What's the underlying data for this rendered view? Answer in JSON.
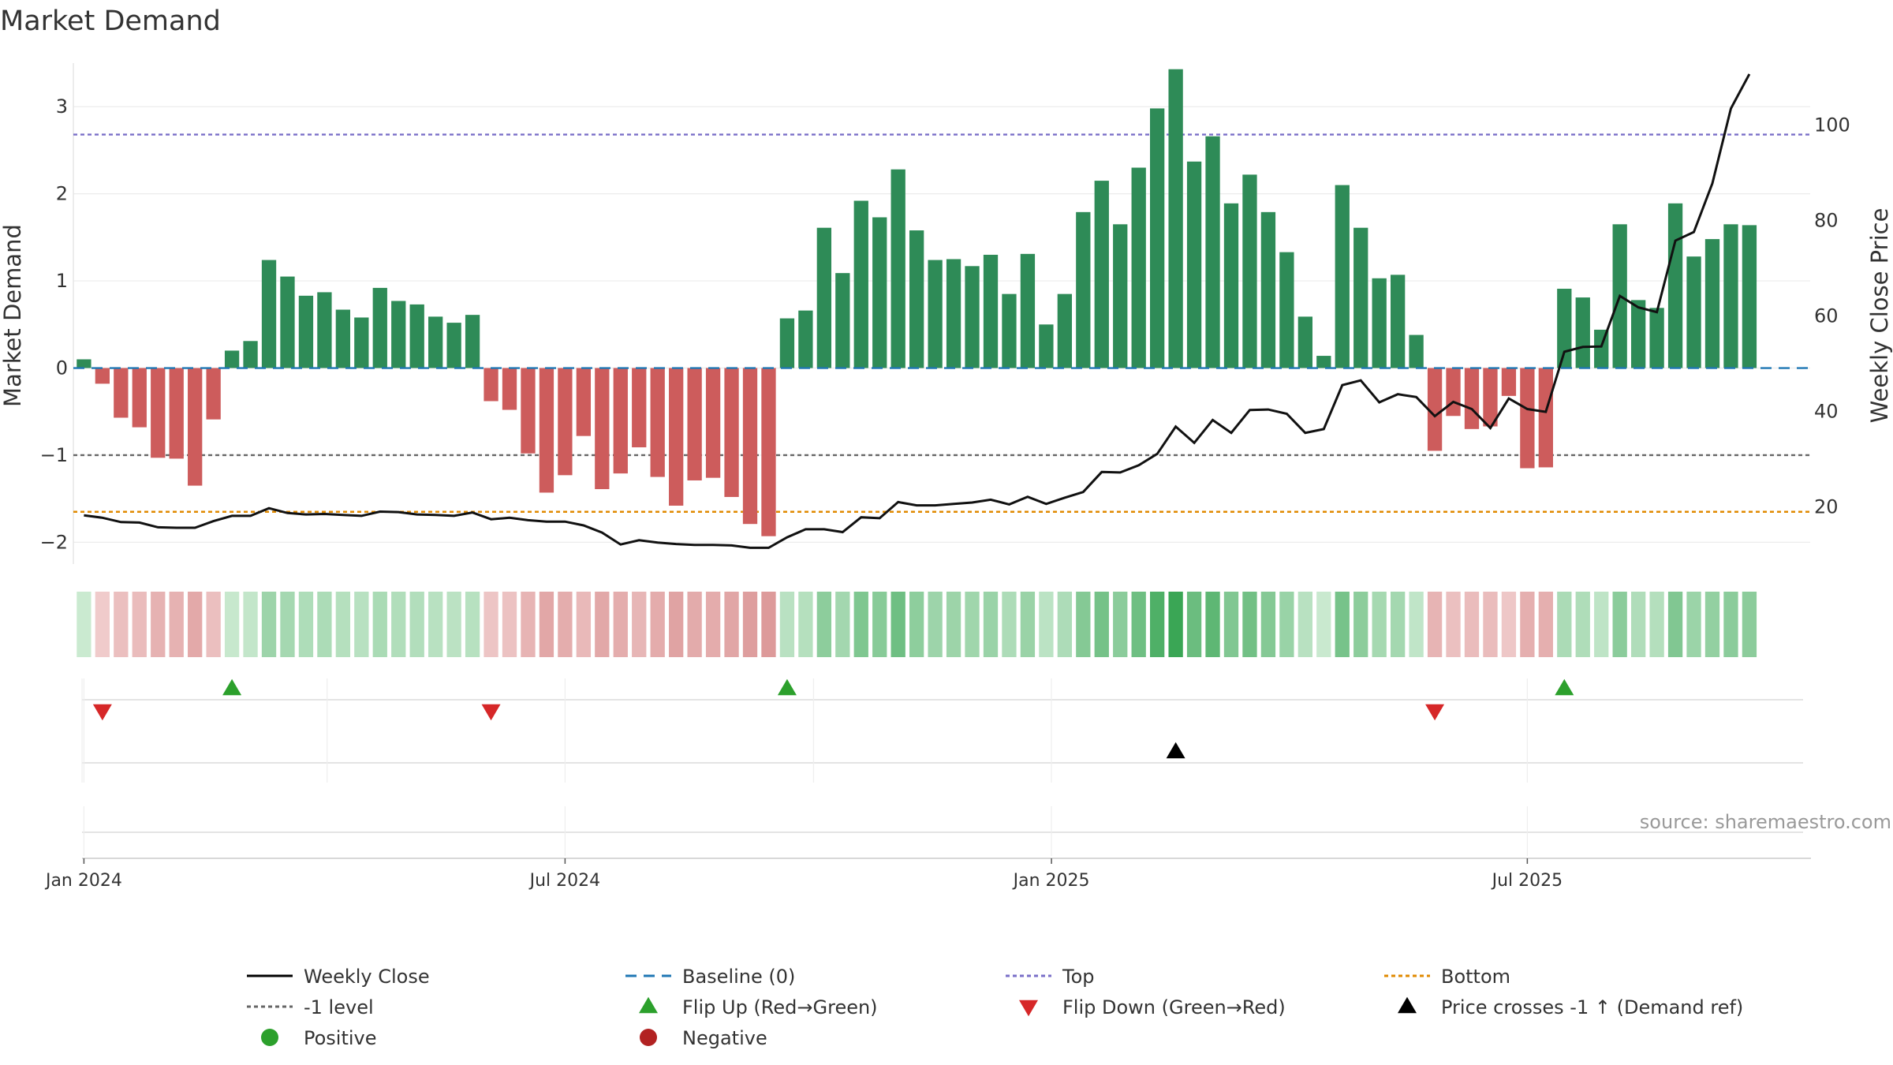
{
  "chart_data": {
    "type": "bar",
    "title": "Market Demand",
    "ylabel_left": "Market Demand",
    "ylabel_right": "Weekly Close Price",
    "ylim_left": [
      -2.25,
      3.5
    ],
    "ylim_right": [
      8,
      113
    ],
    "yticks_left": [
      {
        "v": 3,
        "label": "3"
      },
      {
        "v": 2,
        "label": "2"
      },
      {
        "v": 1,
        "label": "1"
      },
      {
        "v": 0,
        "label": "0"
      },
      {
        "v": -1,
        "label": "−1"
      },
      {
        "v": -2,
        "label": "−2"
      }
    ],
    "yticks_right": [
      {
        "v": 100,
        "label": "100"
      },
      {
        "v": 80,
        "label": "80"
      },
      {
        "v": 60,
        "label": "60"
      },
      {
        "v": 40,
        "label": "40"
      },
      {
        "v": 20,
        "label": "20"
      }
    ],
    "x_start": "2024-01-01",
    "x_range_days": [
      -4,
      653
    ],
    "xticks": [
      {
        "day": 0,
        "label": "Jan 2024"
      },
      {
        "day": 182,
        "label": "Jul 2024"
      },
      {
        "day": 366,
        "label": "Jan 2025"
      },
      {
        "day": 546,
        "label": "Jul 2025"
      }
    ],
    "week_days": 7,
    "demand": [
      0.1,
      -0.18,
      -0.57,
      -0.68,
      -1.03,
      -1.04,
      -1.35,
      -0.59,
      0.2,
      0.31,
      1.24,
      1.05,
      0.83,
      0.87,
      0.67,
      0.58,
      0.92,
      0.77,
      0.73,
      0.59,
      0.52,
      0.61,
      -0.38,
      -0.48,
      -0.98,
      -1.43,
      -1.23,
      -0.78,
      -1.39,
      -1.21,
      -0.91,
      -1.25,
      -1.58,
      -1.29,
      -1.26,
      -1.48,
      -1.79,
      -1.93,
      0.57,
      0.66,
      1.61,
      1.09,
      1.92,
      1.73,
      2.28,
      1.58,
      1.24,
      1.25,
      1.17,
      1.3,
      0.85,
      1.31,
      0.5,
      0.85,
      1.79,
      2.15,
      1.65,
      2.3,
      2.98,
      3.43,
      2.37,
      2.66,
      1.89,
      2.22,
      1.79,
      1.33,
      0.59,
      0.14,
      2.1,
      1.61,
      1.03,
      1.07,
      0.38,
      -0.95,
      -0.55,
      -0.7,
      -0.67,
      -0.32,
      -1.15,
      -1.14,
      0.91,
      0.81,
      0.44,
      1.65,
      0.78,
      0.69,
      1.89,
      1.28,
      1.48,
      1.65,
      1.64
    ],
    "close": [
      18.2,
      17.7,
      16.8,
      16.7,
      15.7,
      15.6,
      15.6,
      17.0,
      18.1,
      18.1,
      19.7,
      18.7,
      18.4,
      18.5,
      18.3,
      18.1,
      19.0,
      18.9,
      18.4,
      18.3,
      18.1,
      18.8,
      17.4,
      17.7,
      17.2,
      16.9,
      16.9,
      16.1,
      14.6,
      12.1,
      13.0,
      12.5,
      12.2,
      12.0,
      12.0,
      11.9,
      11.4,
      11.4,
      13.6,
      15.3,
      15.3,
      14.7,
      17.8,
      17.6,
      21.0,
      20.3,
      20.3,
      20.6,
      20.9,
      21.5,
      20.5,
      22.1,
      20.6,
      21.9,
      23.1,
      27.3,
      27.2,
      28.7,
      31.1,
      36.8,
      33.4,
      38.2,
      35.5,
      40.3,
      40.4,
      39.5,
      35.5,
      36.3,
      45.5,
      46.5,
      41.9,
      43.6,
      43.0,
      39.0,
      42.0,
      40.5,
      36.5,
      42.7,
      40.5,
      39.9,
      52.5,
      53.5,
      53.6,
      64.2,
      61.8,
      60.8,
      75.8,
      77.6,
      87.8,
      103.5,
      110.7
    ],
    "top_level": 2.68,
    "minus_one_level": -1,
    "bottom_level": -1.65,
    "flip_up_weeks": [
      8,
      38,
      80
    ],
    "flip_down_weeks": [
      1,
      22,
      73
    ],
    "cross_weeks": [
      59
    ],
    "legend": [
      {
        "label": "Weekly Close",
        "kind": "line",
        "color": "#000000"
      },
      {
        "label": "Baseline (0)",
        "kind": "dash",
        "color": "#1f77b4"
      },
      {
        "label": "Top",
        "kind": "dot",
        "color": "#7a6fc8"
      },
      {
        "label": "Bottom",
        "kind": "dot",
        "color": "#e08a00"
      },
      {
        "label": "-1 level",
        "kind": "dot",
        "color": "#666666"
      },
      {
        "label": "Flip Up (Red→Green)",
        "kind": "tri-up",
        "color": "#2ca02c"
      },
      {
        "label": "Flip Down (Green→Red)",
        "kind": "tri-down",
        "color": "#d62728"
      },
      {
        "label": "Price crosses -1 ↑ (Demand ref)",
        "kind": "tri-up",
        "color": "#000000"
      },
      {
        "label": "Positive",
        "kind": "circle",
        "color": "#2ca02c"
      },
      {
        "label": "Negative",
        "kind": "circle",
        "color": "#b22222"
      }
    ],
    "source": "source: sharemaestro.com"
  },
  "colors": {
    "positive": "#2e8b57",
    "negative": "#cd5c5c",
    "close": "#111111",
    "baseline": "#1f77b4",
    "top": "#7a6fc8",
    "bottom": "#e08a00",
    "minus_one": "#666666",
    "flip_up": "#2ca02c",
    "flip_down": "#d62728",
    "cross": "#000000"
  }
}
